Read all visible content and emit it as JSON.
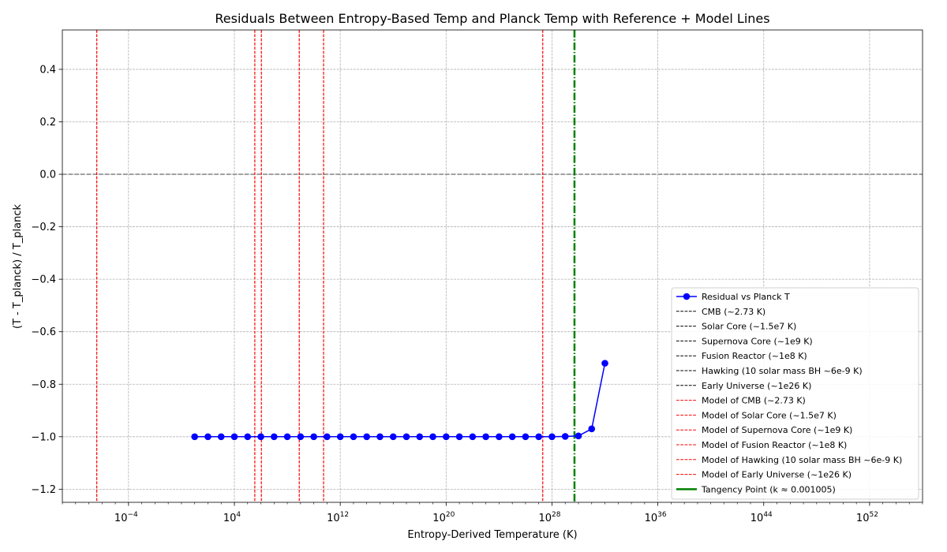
{
  "chart_data": {
    "type": "line",
    "title": "Residuals Between Entropy-Based Temp and Planck Temp with Reference + Model Lines",
    "xlabel": "Entropy-Derived Temperature (K)",
    "ylabel": "(T - T_planck) / T_planck",
    "xscale": "log",
    "xlim": [
      1e-09,
      1e+56
    ],
    "ylim": [
      -1.25,
      0.55
    ],
    "grid": true,
    "legend_position": "lower-right",
    "x_ticks": [
      {
        "value": 0.0001,
        "base": "10",
        "exp": "−4"
      },
      {
        "value": 10000.0,
        "base": "10",
        "exp": "4"
      },
      {
        "value": 1000000000000.0,
        "base": "10",
        "exp": "12"
      },
      {
        "value": 1e+20,
        "base": "10",
        "exp": "20"
      },
      {
        "value": 1e+28,
        "base": "10",
        "exp": "28"
      },
      {
        "value": 1e+36,
        "base": "10",
        "exp": "36"
      },
      {
        "value": 1e+44,
        "base": "10",
        "exp": "44"
      },
      {
        "value": 1e+52,
        "base": "10",
        "exp": "52"
      }
    ],
    "y_ticks": [
      {
        "value": 0.4,
        "label": "0.4"
      },
      {
        "value": 0.2,
        "label": "0.2"
      },
      {
        "value": 0.0,
        "label": "0.0"
      },
      {
        "value": -0.2,
        "label": "−0.2"
      },
      {
        "value": -0.4,
        "label": "−0.4"
      },
      {
        "value": -0.6,
        "label": "−0.6"
      },
      {
        "value": -0.8,
        "label": "−0.8"
      },
      {
        "value": -1.0,
        "label": "−1.0"
      },
      {
        "value": -1.2,
        "label": "−1.2"
      }
    ],
    "series": [
      {
        "name": "Residual vs Planck T",
        "color": "#0000ff",
        "marker": "circle",
        "x_log10": [
          1,
          2,
          3,
          4,
          5,
          6,
          7,
          8,
          9,
          10,
          11,
          12,
          13,
          14,
          15,
          16,
          17,
          18,
          19,
          20,
          21,
          22,
          23,
          24,
          25,
          26,
          27,
          28,
          29,
          30,
          31,
          32
        ],
        "y": [
          -1,
          -1,
          -1,
          -1,
          -1,
          -1,
          -1,
          -1,
          -1,
          -1,
          -1,
          -1,
          -1,
          -1,
          -1,
          -1,
          -1,
          -1,
          -1,
          -1,
          -1,
          -1,
          -1,
          -1,
          -1,
          -1,
          -1,
          -1,
          -0.999,
          -0.997,
          -0.97,
          -0.72
        ]
      }
    ],
    "reference_lines": [
      {
        "name": "CMB (~2.73 K)",
        "color": "#000000",
        "style": "dashed",
        "x": 2.73,
        "visible": false
      },
      {
        "name": "Solar Core (~1.5e7 K)",
        "color": "#000000",
        "style": "dashed",
        "x": 15000000.0,
        "visible": false
      },
      {
        "name": "Supernova Core (~1e9 K)",
        "color": "#000000",
        "style": "dashed",
        "x": 1000000000.0,
        "visible": false
      },
      {
        "name": "Fusion Reactor (~1e8 K)",
        "color": "#000000",
        "style": "dashed",
        "x": 100000000.0,
        "visible": false
      },
      {
        "name": "Hawking (10 solar mass BH ~6e-9 K)",
        "color": "#000000",
        "style": "dashed",
        "x": 6e-09,
        "visible": false
      },
      {
        "name": "Early Universe (~1e26 K)",
        "color": "#000000",
        "style": "dashed",
        "x": 1e+26,
        "visible": false
      }
    ],
    "model_lines": [
      {
        "name": "Model of CMB (~2.73 K)",
        "color": "#ff0000",
        "style": "dashed",
        "x": 4e-07
      },
      {
        "name": "Model of Solar Core (~1.5e7 K)",
        "color": "#ff0000",
        "style": "dashed",
        "x": 350000.0
      },
      {
        "name": "Model of Supernova Core (~1e9 K)",
        "color": "#ff0000",
        "style": "dashed",
        "x": 55000000000.0
      },
      {
        "name": "Model of Fusion Reactor (~1e8 K)",
        "color": "#ff0000",
        "style": "dashed",
        "x": 800000000.0
      },
      {
        "name": "Model of Hawking (10 solar mass BH ~6e-9 K)",
        "color": "#ff0000",
        "style": "dashed",
        "x": 1100000.0
      },
      {
        "name": "Model of Early Universe (~1e26 K)",
        "color": "#ff0000",
        "style": "dashed",
        "x": 2e+27
      }
    ],
    "tangency_line": {
      "name": "Tangency Point (k ≈ 0.001005)",
      "color": "#008000",
      "style": "dashdot",
      "x": 5e+29
    },
    "zero_line": {
      "y": 0,
      "color": "#808080",
      "style": "dashed"
    }
  }
}
